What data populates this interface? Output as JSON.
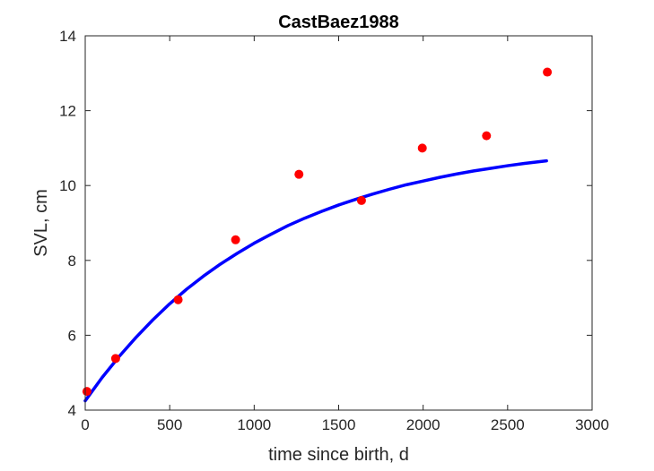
{
  "chart_data": {
    "type": "scatter",
    "title": "CastBaez1988",
    "xlabel": "time since birth, d",
    "ylabel": "SVL, cm",
    "xlim": [
      0,
      3000
    ],
    "ylim": [
      4,
      14
    ],
    "xticks": [
      0,
      500,
      1000,
      1500,
      2000,
      2500,
      3000
    ],
    "yticks": [
      4,
      6,
      8,
      10,
      12,
      14
    ],
    "grid": false,
    "legend": "none",
    "series": [
      {
        "kind": "points",
        "color": "#ff0000",
        "x": [
          10,
          180,
          550,
          890,
          1265,
          1635,
          1995,
          2375,
          2735
        ],
        "y": [
          4.5,
          5.38,
          6.95,
          8.55,
          10.3,
          9.6,
          11.0,
          11.33,
          13.03
        ]
      },
      {
        "kind": "curve",
        "color": "#0000ff",
        "x": [
          0,
          100,
          200,
          300,
          400,
          500,
          600,
          700,
          800,
          900,
          1000,
          1100,
          1200,
          1300,
          1400,
          1500,
          1600,
          1700,
          1800,
          1900,
          2000,
          2100,
          2200,
          2300,
          2400,
          2500,
          2600,
          2730
        ],
        "y": [
          4.25,
          4.87,
          5.43,
          5.94,
          6.41,
          6.84,
          7.23,
          7.58,
          7.9,
          8.19,
          8.46,
          8.7,
          8.93,
          9.13,
          9.31,
          9.48,
          9.63,
          9.77,
          9.9,
          10.02,
          10.12,
          10.22,
          10.31,
          10.39,
          10.46,
          10.53,
          10.59,
          10.66
        ]
      }
    ]
  }
}
